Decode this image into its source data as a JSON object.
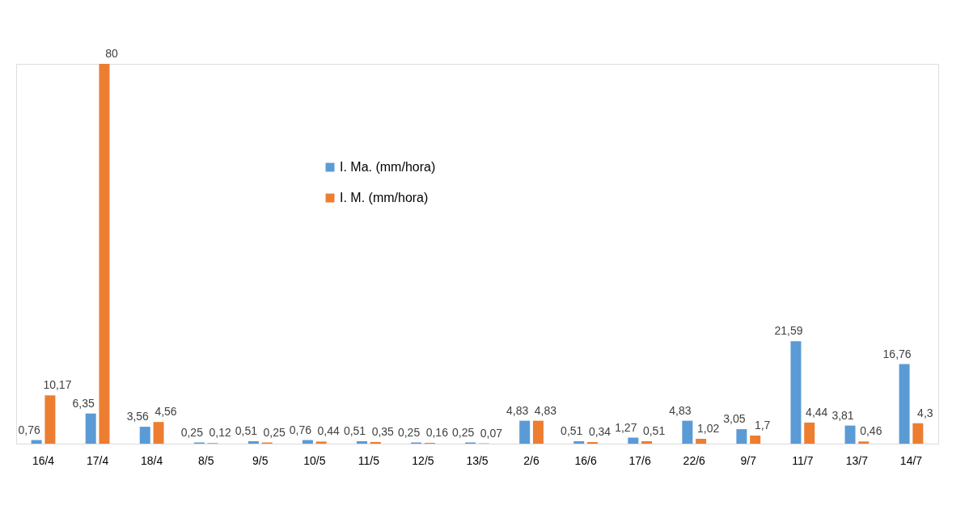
{
  "chart_data": {
    "type": "bar",
    "categories": [
      "16/4",
      "17/4",
      "18/4",
      "8/5",
      "9/5",
      "10/5",
      "11/5",
      "12/5",
      "13/5",
      "2/6",
      "16/6",
      "17/6",
      "22/6",
      "9/7",
      "11/7",
      "13/7",
      "14/7"
    ],
    "series": [
      {
        "name": "I. Ma. (mm/hora)",
        "color": "#5b9bd5",
        "values": [
          0.76,
          6.35,
          3.56,
          0.25,
          0.51,
          0.76,
          0.51,
          0.25,
          0.25,
          4.83,
          0.51,
          1.27,
          4.83,
          3.05,
          21.59,
          3.81,
          16.76
        ],
        "value_labels": [
          "0,76",
          "6,35",
          "3,56",
          "0,25",
          "0,51",
          "0,76",
          "0,51",
          "0,25",
          "0,25",
          "4,83",
          "0,51",
          "1,27",
          "4,83",
          "3,05",
          "21,59",
          "3,81",
          "16,76"
        ]
      },
      {
        "name": "I. M. (mm/hora)",
        "color": "#ed7d31",
        "values": [
          10.17,
          80,
          4.56,
          0.12,
          0.25,
          0.44,
          0.35,
          0.16,
          0.07,
          4.83,
          0.34,
          0.51,
          1.02,
          1.7,
          4.44,
          0.46,
          4.3
        ],
        "value_labels": [
          "10,17",
          "80",
          "4,56",
          "0,12",
          "0,25",
          "0,44",
          "0,35",
          "0,16",
          "0,07",
          "4,83",
          "0,34",
          "0,51",
          "1,02",
          "1,7",
          "4,44",
          "0,46",
          "4,3"
        ]
      }
    ],
    "legend": "top",
    "grid": false
  }
}
